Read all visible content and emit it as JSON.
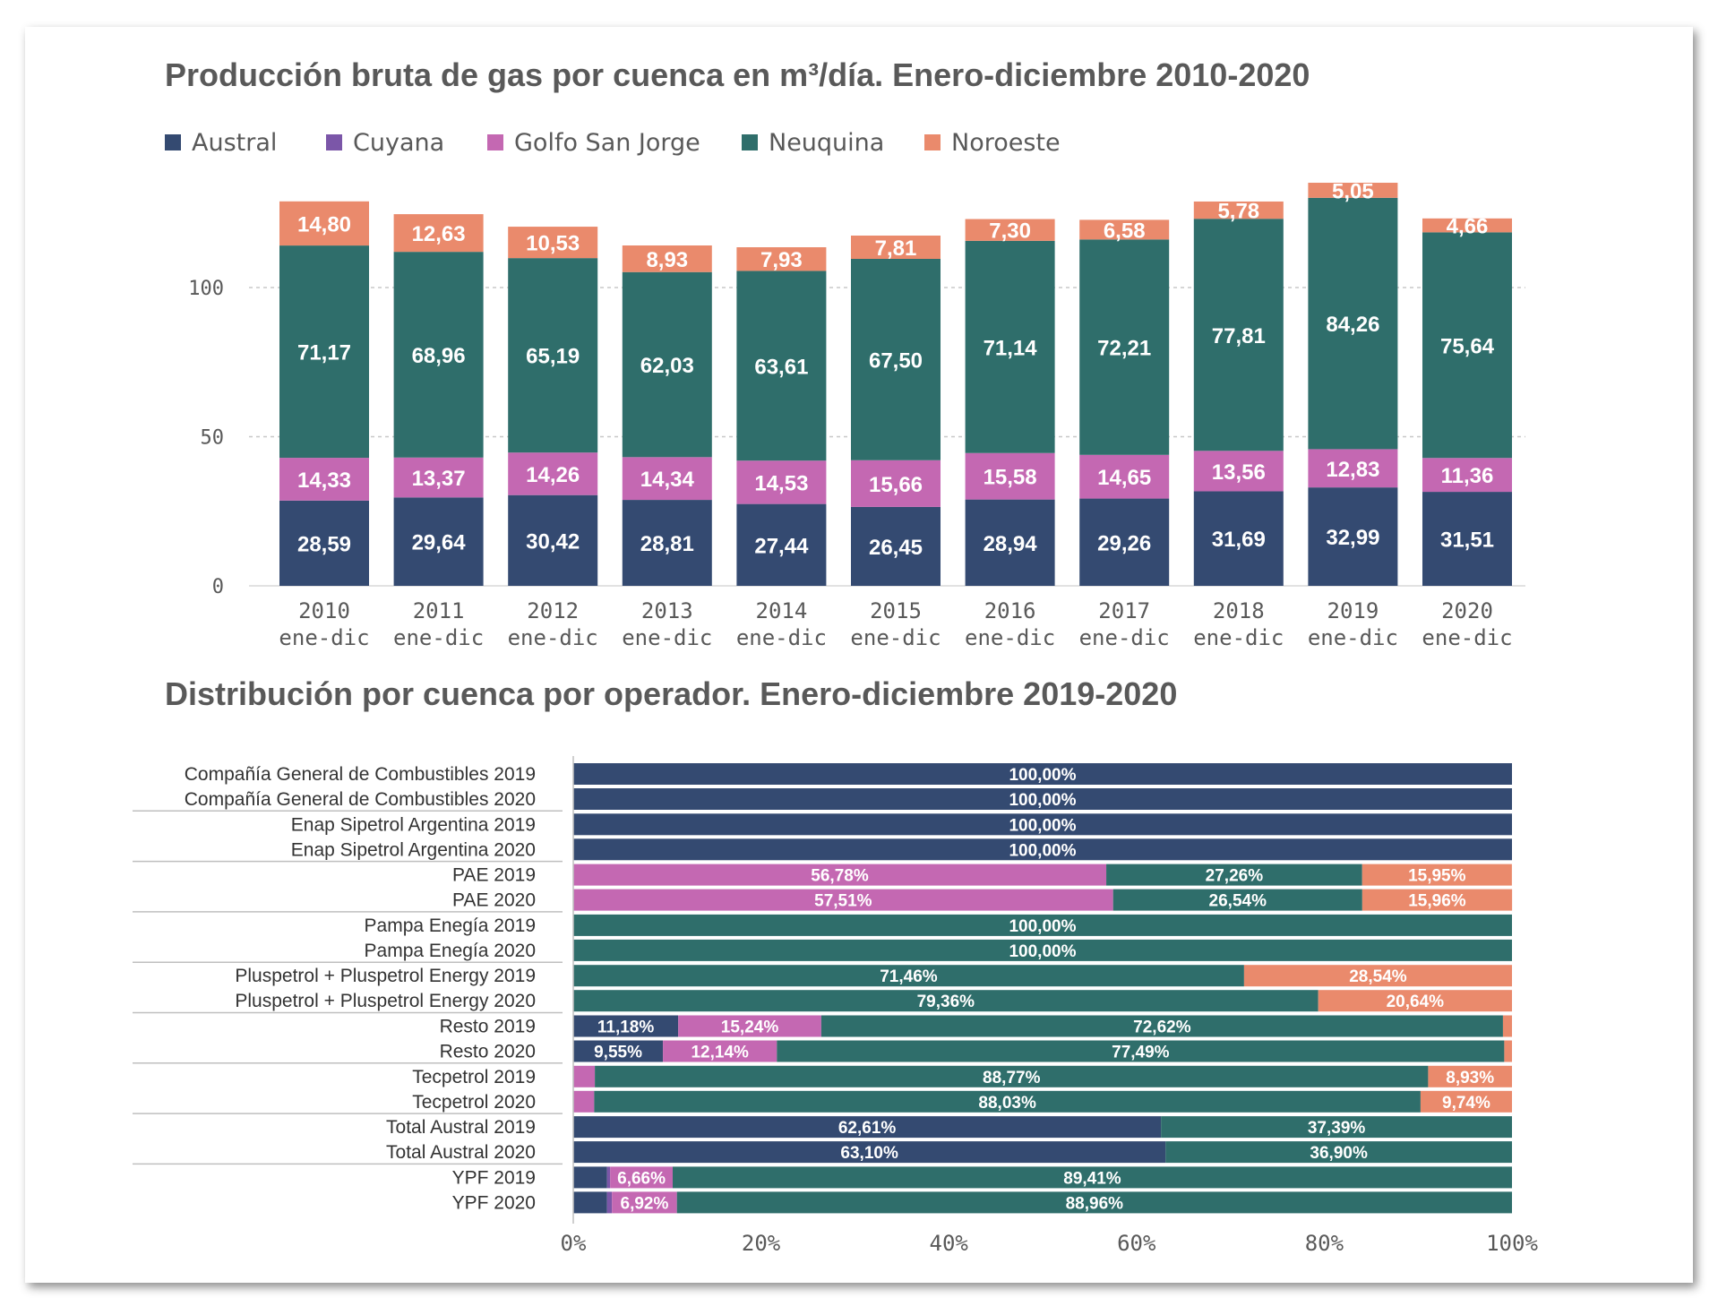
{
  "colors": {
    "Austral": "#344a71",
    "Cuyana": "#7b56a8",
    "Golfo San Jorge": "#c468b2",
    "Neuquina": "#2f6e6b",
    "Noroeste": "#ea8a6c"
  },
  "chart_data": [
    {
      "type": "bar",
      "stacked": true,
      "title": "Producción bruta de gas por cuenca en m³/día. Enero-diciembre 2010-2020",
      "legend_placement": "top-left",
      "legend": [
        "Austral",
        "Cuyana",
        "Golfo San Jorge",
        "Neuquina",
        "Noroeste"
      ],
      "categories": [
        [
          "2010",
          "ene-dic"
        ],
        [
          "2011",
          "ene-dic"
        ],
        [
          "2012",
          "ene-dic"
        ],
        [
          "2013",
          "ene-dic"
        ],
        [
          "2014",
          "ene-dic"
        ],
        [
          "2015",
          "ene-dic"
        ],
        [
          "2016",
          "ene-dic"
        ],
        [
          "2017",
          "ene-dic"
        ],
        [
          "2018",
          "ene-dic"
        ],
        [
          "2019",
          "ene-dic"
        ],
        [
          "2020",
          "ene-dic"
        ]
      ],
      "yticks": [
        "0",
        "50",
        "100"
      ],
      "ylim": [
        0,
        130
      ],
      "grid": "horizontal dashed",
      "series": [
        {
          "name": "Austral",
          "values": [
            28.59,
            29.64,
            30.42,
            28.81,
            27.44,
            26.45,
            28.94,
            29.26,
            31.69,
            32.99,
            31.51
          ],
          "labels": [
            "28,59",
            "29,64",
            "30,42",
            "28,81",
            "27,44",
            "26,45",
            "28,94",
            "29,26",
            "31,69",
            "32,99",
            "31,51"
          ]
        },
        {
          "name": "Golfo San Jorge",
          "values": [
            14.33,
            13.37,
            14.26,
            14.34,
            14.53,
            15.66,
            15.58,
            14.65,
            13.56,
            12.83,
            11.36
          ],
          "labels": [
            "14,33",
            "13,37",
            "14,26",
            "14,34",
            "14,53",
            "15,66",
            "15,58",
            "14,65",
            "13,56",
            "12,83",
            "11,36"
          ]
        },
        {
          "name": "Neuquina",
          "values": [
            71.17,
            68.96,
            65.19,
            62.03,
            63.61,
            67.5,
            71.14,
            72.21,
            77.81,
            84.26,
            75.64
          ],
          "labels": [
            "71,17",
            "68,96",
            "65,19",
            "62,03",
            "63,61",
            "67,50",
            "71,14",
            "72,21",
            "77,81",
            "84,26",
            "75,64"
          ]
        },
        {
          "name": "Noroeste",
          "values": [
            14.8,
            12.63,
            10.53,
            8.93,
            7.93,
            7.81,
            7.3,
            6.58,
            5.78,
            5.05,
            4.66
          ],
          "labels": [
            "14,80",
            "12,63",
            "10,53",
            "8,93",
            "7,93",
            "7,81",
            "7,30",
            "6,58",
            "5,78",
            "5,05",
            "4,66"
          ]
        }
      ]
    },
    {
      "type": "bar",
      "orientation": "horizontal",
      "stacked": true,
      "normalized": true,
      "title": "Distribución por cuenca por operador. Enero-diciembre 2019-2020",
      "xticks": [
        "0%",
        "20%",
        "40%",
        "60%",
        "80%",
        "100%"
      ],
      "xlim": [
        0,
        100
      ],
      "groups": [
        {
          "rows": [
            {
              "label": "Compañía General de Combustibles 2019",
              "segments": [
                {
                  "s": "Austral",
                  "v": 100,
                  "t": "100,00%"
                }
              ]
            },
            {
              "label": "Compañía General de Combustibles 2020",
              "segments": [
                {
                  "s": "Austral",
                  "v": 100,
                  "t": "100,00%"
                }
              ]
            }
          ]
        },
        {
          "rows": [
            {
              "label": "Enap Sipetrol Argentina 2019",
              "segments": [
                {
                  "s": "Austral",
                  "v": 100,
                  "t": "100,00%"
                }
              ]
            },
            {
              "label": "Enap Sipetrol Argentina 2020",
              "segments": [
                {
                  "s": "Austral",
                  "v": 100,
                  "t": "100,00%"
                }
              ]
            }
          ]
        },
        {
          "rows": [
            {
              "label": "PAE 2019",
              "segments": [
                {
                  "s": "Golfo San Jorge",
                  "v": 56.78,
                  "t": "56,78%"
                },
                {
                  "s": "Neuquina",
                  "v": 27.26,
                  "t": "27,26%"
                },
                {
                  "s": "Noroeste",
                  "v": 15.95,
                  "t": "15,95%"
                }
              ]
            },
            {
              "label": "PAE 2020",
              "segments": [
                {
                  "s": "Golfo San Jorge",
                  "v": 57.51,
                  "t": "57,51%"
                },
                {
                  "s": "Neuquina",
                  "v": 26.54,
                  "t": "26,54%"
                },
                {
                  "s": "Noroeste",
                  "v": 15.96,
                  "t": "15,96%"
                }
              ]
            }
          ]
        },
        {
          "rows": [
            {
              "label": "Pampa Enegía 2019",
              "segments": [
                {
                  "s": "Neuquina",
                  "v": 100,
                  "t": "100,00%"
                }
              ]
            },
            {
              "label": "Pampa Enegía 2020",
              "segments": [
                {
                  "s": "Neuquina",
                  "v": 100,
                  "t": "100,00%"
                }
              ]
            }
          ]
        },
        {
          "rows": [
            {
              "label": "Pluspetrol + Pluspetrol Energy 2019",
              "segments": [
                {
                  "s": "Neuquina",
                  "v": 71.46,
                  "t": "71,46%"
                },
                {
                  "s": "Noroeste",
                  "v": 28.54,
                  "t": "28,54%"
                }
              ]
            },
            {
              "label": "Pluspetrol + Pluspetrol Energy 2020",
              "segments": [
                {
                  "s": "Neuquina",
                  "v": 79.36,
                  "t": "79,36%"
                },
                {
                  "s": "Noroeste",
                  "v": 20.64,
                  "t": "20,64%"
                }
              ]
            }
          ]
        },
        {
          "rows": [
            {
              "label": "Resto 2019",
              "segments": [
                {
                  "s": "Austral",
                  "v": 11.18,
                  "t": "11,18%"
                },
                {
                  "s": "Golfo San Jorge",
                  "v": 15.24,
                  "t": "15,24%"
                },
                {
                  "s": "Neuquina",
                  "v": 72.62,
                  "t": "72,62%"
                },
                {
                  "s": "Noroeste",
                  "v": 0.96,
                  "t": ""
                }
              ]
            },
            {
              "label": "Resto 2020",
              "segments": [
                {
                  "s": "Austral",
                  "v": 9.55,
                  "t": "9,55%"
                },
                {
                  "s": "Golfo San Jorge",
                  "v": 12.14,
                  "t": "12,14%"
                },
                {
                  "s": "Neuquina",
                  "v": 77.49,
                  "t": "77,49%"
                },
                {
                  "s": "Noroeste",
                  "v": 0.82,
                  "t": ""
                }
              ]
            }
          ]
        },
        {
          "rows": [
            {
              "label": "Tecpetrol 2019",
              "segments": [
                {
                  "s": "Golfo San Jorge",
                  "v": 2.3,
                  "t": ""
                },
                {
                  "s": "Neuquina",
                  "v": 88.77,
                  "t": "88,77%"
                },
                {
                  "s": "Noroeste",
                  "v": 8.93,
                  "t": "8,93%"
                }
              ]
            },
            {
              "label": "Tecpetrol 2020",
              "segments": [
                {
                  "s": "Golfo San Jorge",
                  "v": 2.23,
                  "t": ""
                },
                {
                  "s": "Neuquina",
                  "v": 88.03,
                  "t": "88,03%"
                },
                {
                  "s": "Noroeste",
                  "v": 9.74,
                  "t": "9,74%"
                }
              ]
            }
          ]
        },
        {
          "rows": [
            {
              "label": "Total Austral 2019",
              "segments": [
                {
                  "s": "Austral",
                  "v": 62.61,
                  "t": "62,61%"
                },
                {
                  "s": "Neuquina",
                  "v": 37.39,
                  "t": "37,39%"
                }
              ]
            },
            {
              "label": "Total Austral 2020",
              "segments": [
                {
                  "s": "Austral",
                  "v": 63.1,
                  "t": "63,10%"
                },
                {
                  "s": "Neuquina",
                  "v": 36.9,
                  "t": "36,90%"
                }
              ]
            }
          ]
        },
        {
          "rows": [
            {
              "label": "YPF 2019",
              "segments": [
                {
                  "s": "Austral",
                  "v": 3.6,
                  "t": ""
                },
                {
                  "s": "Cuyana",
                  "v": 0.33,
                  "t": ""
                },
                {
                  "s": "Golfo San Jorge",
                  "v": 6.66,
                  "t": "6,66%"
                },
                {
                  "s": "Neuquina",
                  "v": 89.41,
                  "t": "89,41%"
                }
              ]
            },
            {
              "label": "YPF 2020",
              "segments": [
                {
                  "s": "Austral",
                  "v": 3.6,
                  "t": ""
                },
                {
                  "s": "Cuyana",
                  "v": 0.52,
                  "t": ""
                },
                {
                  "s": "Golfo San Jorge",
                  "v": 6.92,
                  "t": "6,92%"
                },
                {
                  "s": "Neuquina",
                  "v": 88.96,
                  "t": "88,96%"
                }
              ]
            }
          ]
        }
      ]
    }
  ]
}
